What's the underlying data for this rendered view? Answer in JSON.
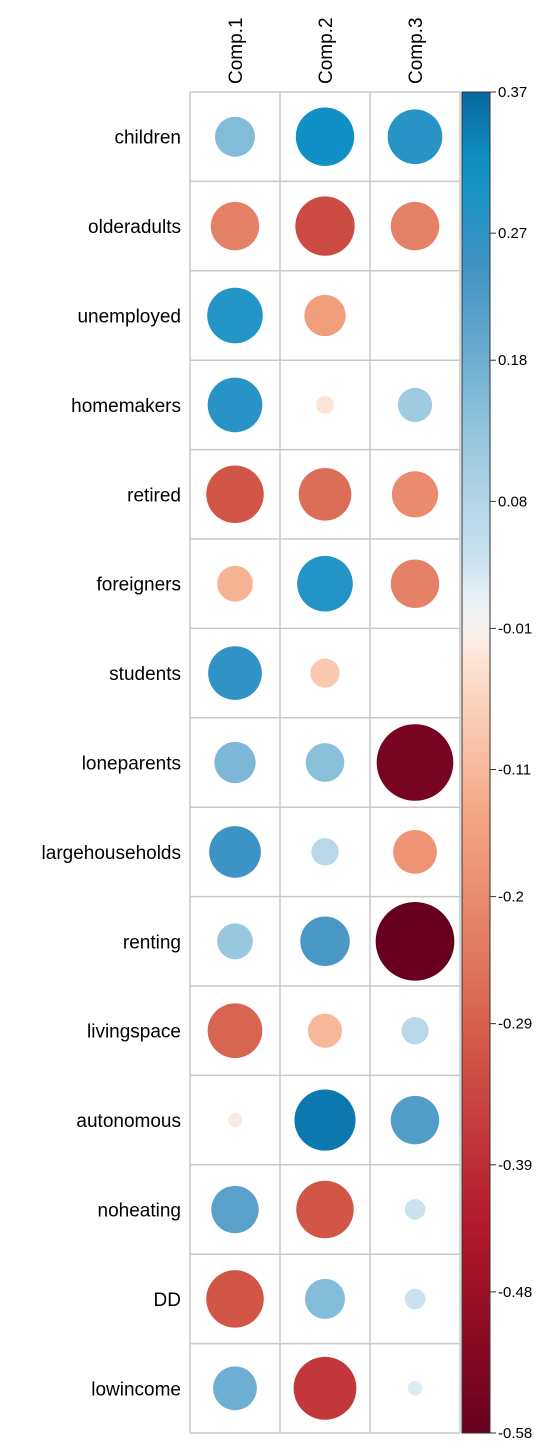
{
  "chart_data": {
    "type": "heatmap",
    "title": "",
    "columns": [
      "Comp.1",
      "Comp.2",
      "Comp.3"
    ],
    "rows": [
      "children",
      "olderadults",
      "unemployed",
      "homemakers",
      "retired",
      "foreigners",
      "students",
      "loneparents",
      "largehouseholds",
      "renting",
      "livingspace",
      "autonomous",
      "noheating",
      "DD",
      "lowincome"
    ],
    "values": [
      [
        0.15,
        0.32,
        0.28
      ],
      [
        -0.22,
        -0.33,
        -0.22
      ],
      [
        0.29,
        -0.16,
        0.0
      ],
      [
        0.28,
        -0.03,
        0.11
      ],
      [
        -0.31,
        -0.26,
        -0.2
      ],
      [
        -0.12,
        0.29,
        -0.22
      ],
      [
        0.27,
        -0.08,
        0.0
      ],
      [
        0.16,
        0.14,
        -0.55
      ],
      [
        0.25,
        0.07,
        -0.18
      ],
      [
        0.12,
        0.23,
        -0.58
      ],
      [
        -0.28,
        -0.11,
        0.07
      ],
      [
        -0.02,
        0.35,
        0.22
      ],
      [
        0.21,
        -0.31,
        0.04
      ],
      [
        -0.31,
        0.15,
        0.04
      ],
      [
        0.18,
        -0.37,
        0.02
      ]
    ],
    "colorbar": {
      "min": -0.58,
      "max": 0.37,
      "ticks": [
        0.37,
        0.27,
        0.18,
        0.08,
        -0.01,
        -0.11,
        -0.2,
        -0.29,
        -0.39,
        -0.48,
        -0.58
      ],
      "tick_labels": [
        "0.37",
        "0.27",
        "0.18",
        "0.08",
        "-0.01",
        "-0.11",
        "-0.2",
        "-0.29",
        "-0.39",
        "-0.48",
        "-0.58"
      ]
    },
    "grid": true,
    "legend": "colorbar-right"
  },
  "colors": {
    "positive_max": "#0c6aa3",
    "neutral": "#f7f7f7",
    "negative_max": "#680121"
  }
}
